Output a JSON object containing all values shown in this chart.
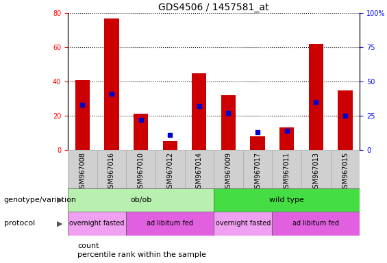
{
  "title": "GDS4506 / 1457581_at",
  "samples": [
    "GSM967008",
    "GSM967016",
    "GSM967010",
    "GSM967012",
    "GSM967014",
    "GSM967009",
    "GSM967017",
    "GSM967011",
    "GSM967013",
    "GSM967015"
  ],
  "count_values": [
    41,
    77,
    21,
    5,
    45,
    32,
    8,
    13,
    62,
    35
  ],
  "percentile_values": [
    33,
    41,
    22,
    11,
    32,
    27,
    13,
    14,
    35,
    25
  ],
  "ylim_left": [
    0,
    80
  ],
  "ylim_right": [
    0,
    100
  ],
  "yticks_left": [
    0,
    20,
    40,
    60,
    80
  ],
  "yticks_right": [
    0,
    25,
    50,
    75,
    100
  ],
  "bar_color": "#cc0000",
  "percentile_color": "#0000cc",
  "title_fontsize": 10,
  "tick_fontsize": 7,
  "label_fontsize": 8,
  "genotype_groups": [
    {
      "label": "ob/ob",
      "start": 0,
      "end": 5,
      "color": "#b8f0b0"
    },
    {
      "label": "wild type",
      "start": 5,
      "end": 10,
      "color": "#44dd44"
    }
  ],
  "protocol_groups": [
    {
      "label": "overnight fasted",
      "start": 0,
      "end": 2,
      "color": "#f0a0f0"
    },
    {
      "label": "ad libitum fed",
      "start": 2,
      "end": 5,
      "color": "#e060e0"
    },
    {
      "label": "overnight fasted",
      "start": 5,
      "end": 7,
      "color": "#f0a0f0"
    },
    {
      "label": "ad libitum fed",
      "start": 7,
      "end": 10,
      "color": "#e060e0"
    }
  ],
  "legend_count_label": "count",
  "legend_percentile_label": "percentile rank within the sample",
  "xlabel_genotype": "genotype/variation",
  "xlabel_protocol": "protocol",
  "bar_width": 0.5,
  "xtick_bg_color": "#d0d0d0"
}
